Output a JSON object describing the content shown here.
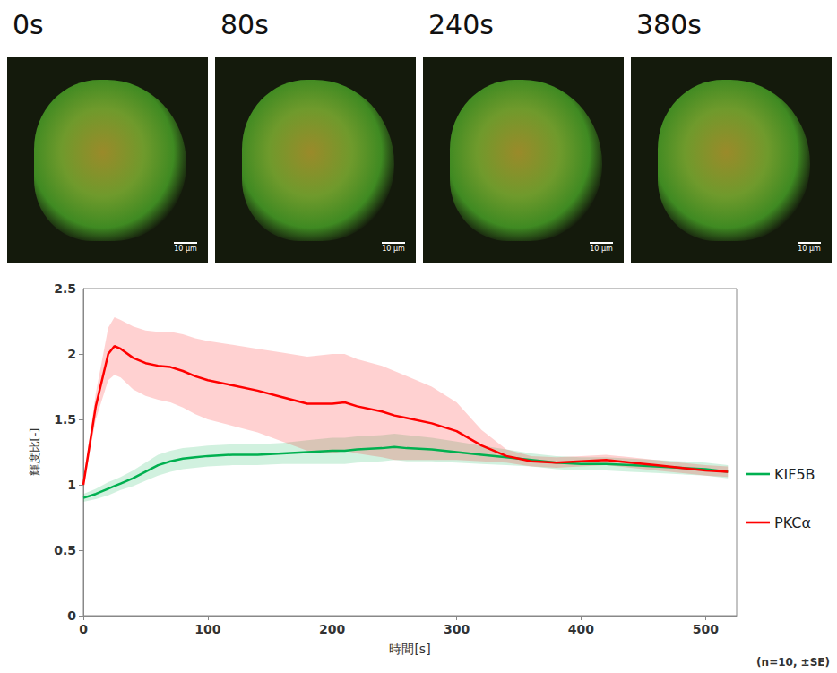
{
  "images": {
    "labels": [
      "0s",
      "80s",
      "240s",
      "380s"
    ],
    "scale_bar": "10 μm"
  },
  "chart_data": {
    "type": "line",
    "x_label": "時間[s]",
    "y_label": "輝度比[-]",
    "note": "(n=10, ±SE)",
    "x": [
      0,
      10,
      20,
      25,
      30,
      40,
      50,
      60,
      70,
      80,
      90,
      100,
      120,
      140,
      160,
      180,
      200,
      210,
      220,
      240,
      250,
      260,
      280,
      300,
      320,
      340,
      360,
      380,
      400,
      420,
      440,
      460,
      480,
      500,
      518
    ],
    "series": [
      {
        "name": "KIF5B",
        "color": "#00b050",
        "values": [
          0.9,
          0.93,
          0.97,
          0.99,
          1.01,
          1.05,
          1.1,
          1.15,
          1.18,
          1.2,
          1.21,
          1.22,
          1.23,
          1.23,
          1.24,
          1.25,
          1.26,
          1.26,
          1.27,
          1.28,
          1.29,
          1.28,
          1.27,
          1.25,
          1.23,
          1.21,
          1.19,
          1.17,
          1.16,
          1.16,
          1.15,
          1.14,
          1.13,
          1.12,
          1.1
        ],
        "error": [
          0.03,
          0.04,
          0.05,
          0.05,
          0.05,
          0.06,
          0.07,
          0.08,
          0.08,
          0.08,
          0.08,
          0.08,
          0.08,
          0.08,
          0.08,
          0.09,
          0.1,
          0.1,
          0.1,
          0.1,
          0.1,
          0.1,
          0.09,
          0.08,
          0.07,
          0.06,
          0.05,
          0.05,
          0.05,
          0.05,
          0.05,
          0.05,
          0.05,
          0.05,
          0.05
        ]
      },
      {
        "name": "PKCα",
        "color": "#ff0000",
        "values": [
          1.0,
          1.6,
          2.0,
          2.06,
          2.04,
          1.97,
          1.93,
          1.91,
          1.9,
          1.87,
          1.83,
          1.8,
          1.76,
          1.72,
          1.67,
          1.62,
          1.62,
          1.63,
          1.6,
          1.56,
          1.53,
          1.51,
          1.47,
          1.41,
          1.3,
          1.22,
          1.18,
          1.17,
          1.18,
          1.19,
          1.17,
          1.15,
          1.13,
          1.11,
          1.1
        ],
        "error": [
          0.02,
          0.1,
          0.2,
          0.22,
          0.22,
          0.24,
          0.25,
          0.26,
          0.27,
          0.28,
          0.29,
          0.3,
          0.31,
          0.32,
          0.34,
          0.36,
          0.38,
          0.37,
          0.36,
          0.35,
          0.34,
          0.32,
          0.28,
          0.22,
          0.12,
          0.05,
          0.04,
          0.04,
          0.04,
          0.04,
          0.04,
          0.04,
          0.04,
          0.04,
          0.04
        ]
      }
    ],
    "xlim": [
      0,
      525
    ],
    "xticks": [
      0,
      100,
      200,
      300,
      400,
      500
    ],
    "ylim": [
      0,
      2.5
    ],
    "yticks": [
      0,
      0.5,
      1,
      1.5,
      2,
      2.5
    ],
    "grid": false,
    "legend": "right",
    "marker": "none"
  }
}
